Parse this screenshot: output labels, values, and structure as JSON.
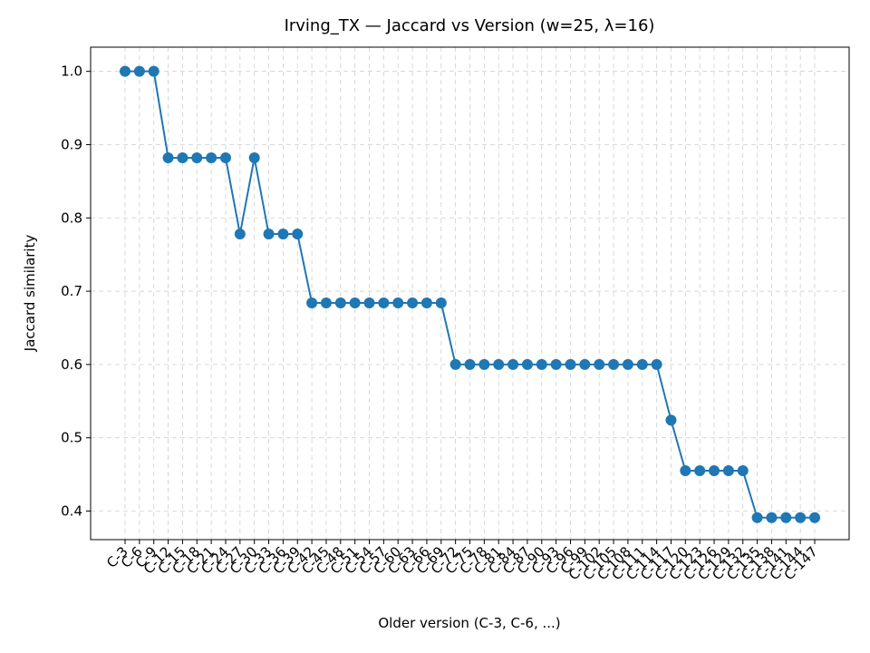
{
  "chart_data": {
    "type": "line",
    "title": "Irving_TX — Jaccard vs Version (w=25, λ=16)",
    "x_label": "Older version (C-3, C-6, ...)",
    "y_label": "Jaccard similarity",
    "categories": [
      "C-3",
      "C-6",
      "C-9",
      "C-12",
      "C-15",
      "C-18",
      "C-21",
      "C-24",
      "C-27",
      "C-30",
      "C-33",
      "C-36",
      "C-39",
      "C-42",
      "C-45",
      "C-48",
      "C-51",
      "C-54",
      "C-57",
      "C-60",
      "C-63",
      "C-66",
      "C-69",
      "C-72",
      "C-75",
      "C-78",
      "C-81",
      "C-84",
      "C-87",
      "C-90",
      "C-93",
      "C-96",
      "C-99",
      "C-102",
      "C-105",
      "C-108",
      "C-111",
      "C-114",
      "C-117",
      "C-120",
      "C-123",
      "C-126",
      "C-129",
      "C-132",
      "C-135",
      "C-138",
      "C-141",
      "C-144",
      "C-147"
    ],
    "series": [
      {
        "name": "Jaccard similarity",
        "color": "#1f77b4",
        "values": [
          1.0,
          1.0,
          1.0,
          0.882,
          0.882,
          0.882,
          0.882,
          0.882,
          0.778,
          0.882,
          0.778,
          0.778,
          0.778,
          0.684,
          0.684,
          0.684,
          0.684,
          0.684,
          0.684,
          0.684,
          0.684,
          0.684,
          0.684,
          0.6,
          0.6,
          0.6,
          0.6,
          0.6,
          0.6,
          0.6,
          0.6,
          0.6,
          0.6,
          0.6,
          0.6,
          0.6,
          0.6,
          0.6,
          0.524,
          0.455,
          0.455,
          0.455,
          0.455,
          0.455,
          0.391,
          0.391,
          0.391,
          0.391,
          0.391
        ]
      }
    ],
    "ylim": [
      0.361,
      1.033
    ],
    "yticks": [
      {
        "value": 0.4,
        "label": "0.4"
      },
      {
        "value": 0.5,
        "label": "0.5"
      },
      {
        "value": 0.6,
        "label": "0.6"
      },
      {
        "value": 0.7,
        "label": "0.7"
      },
      {
        "value": 0.8,
        "label": "0.8"
      },
      {
        "value": 0.9,
        "label": "0.9"
      },
      {
        "value": 1.0,
        "label": "1.0"
      }
    ],
    "grid": true
  }
}
